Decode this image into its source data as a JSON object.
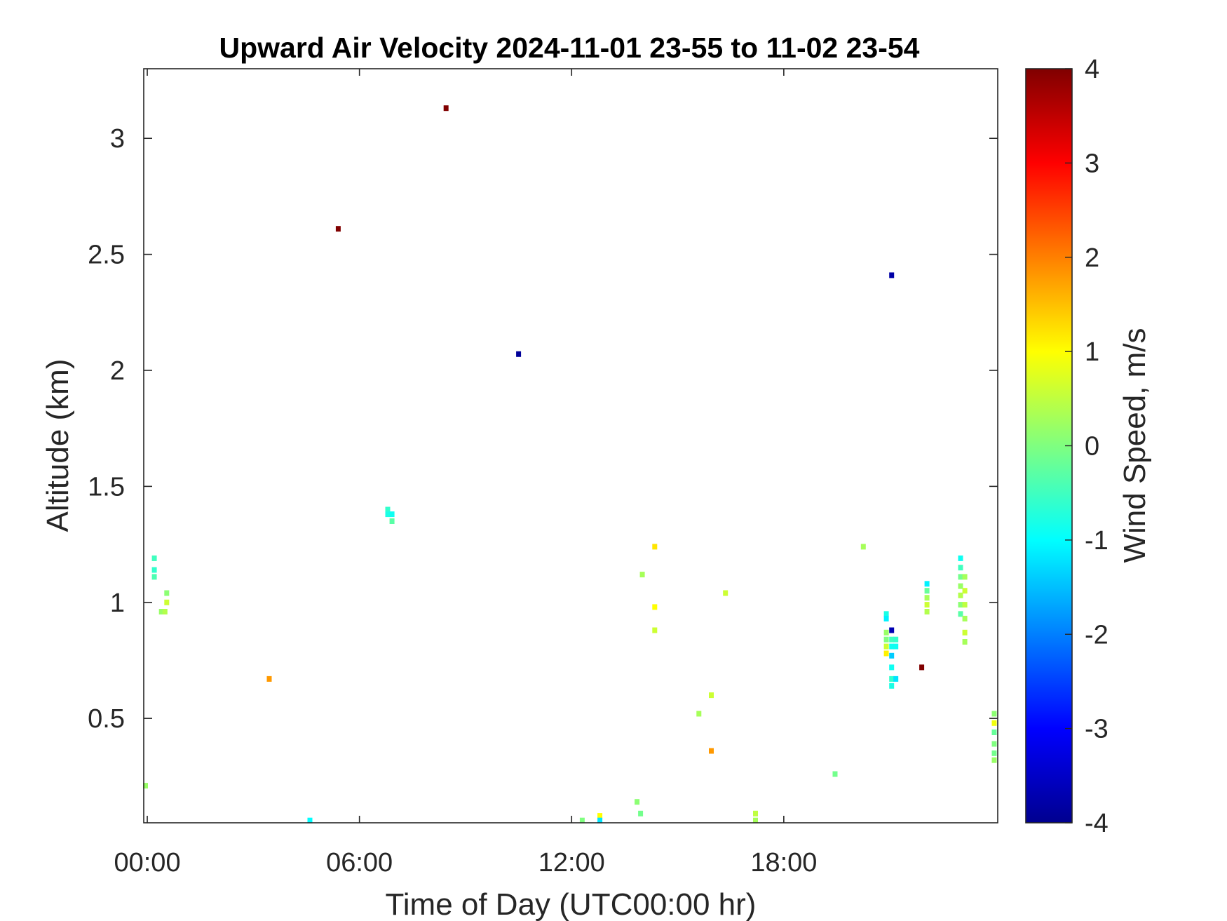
{
  "chart_data": {
    "type": "heatmap",
    "title": "Upward Air Velocity 2024-11-01 23-55 to 11-02 23-54",
    "xlabel": "Time of Day (UTC00:00 hr)",
    "ylabel": "Altitude (km)",
    "colorbar_label": "Wind Speed, m/s",
    "colormap": "jet",
    "x_unit": "hours",
    "xlim": [
      -0.1,
      24.05
    ],
    "ylim": [
      0.05,
      3.3
    ],
    "clim": [
      -4,
      4
    ],
    "x_ticks": [
      0,
      6,
      12,
      18
    ],
    "x_tick_labels": [
      "00:00",
      "06:00",
      "12:00",
      "18:00"
    ],
    "y_ticks": [
      0.5,
      1,
      1.5,
      2,
      2.5,
      3
    ],
    "y_tick_labels": [
      "0.5",
      "1",
      "1.5",
      "2",
      "2.5",
      "3"
    ],
    "colorbar_ticks": [
      -4,
      -3,
      -2,
      -1,
      0,
      1,
      2,
      3,
      4
    ],
    "colorbar_tick_labels": [
      "-4",
      "-3",
      "-2",
      "-1",
      "0",
      "1",
      "2",
      "3",
      "4"
    ],
    "grid": false,
    "points": [
      {
        "t": 8.45,
        "alt": 3.13,
        "w": 4.0
      },
      {
        "t": 5.4,
        "alt": 2.61,
        "w": 4.0
      },
      {
        "t": 10.5,
        "alt": 2.07,
        "w": -3.8
      },
      {
        "t": 21.05,
        "alt": 2.41,
        "w": -3.7
      },
      {
        "t": 21.9,
        "alt": 0.72,
        "w": 4.0
      },
      {
        "t": 3.45,
        "alt": 0.67,
        "w": 1.8
      },
      {
        "t": 15.95,
        "alt": 0.36,
        "w": 1.8
      },
      {
        "t": 14.35,
        "alt": 1.24,
        "w": 1.2
      },
      {
        "t": 14.35,
        "alt": 0.98,
        "w": 1.0
      },
      {
        "t": 14.35,
        "alt": 0.88,
        "w": 0.6
      },
      {
        "t": 14.0,
        "alt": 1.12,
        "w": 0.3
      },
      {
        "t": 16.35,
        "alt": 1.04,
        "w": 0.6
      },
      {
        "t": 15.95,
        "alt": 0.6,
        "w": 0.6
      },
      {
        "t": 15.6,
        "alt": 0.52,
        "w": 0.3
      },
      {
        "t": 19.45,
        "alt": 0.26,
        "w": -0.1
      },
      {
        "t": 20.25,
        "alt": 1.24,
        "w": 0.3
      },
      {
        "t": 17.2,
        "alt": 0.09,
        "w": 0.5
      },
      {
        "t": 17.2,
        "alt": 0.06,
        "w": 0.3
      },
      {
        "t": 13.85,
        "alt": 0.14,
        "w": 0.1
      },
      {
        "t": 13.95,
        "alt": 0.09,
        "w": -0.1
      },
      {
        "t": 12.8,
        "alt": 0.08,
        "w": 1.0
      },
      {
        "t": 12.8,
        "alt": 0.06,
        "w": -1.2
      },
      {
        "t": 12.3,
        "alt": 0.06,
        "w": 0.0
      },
      {
        "t": 4.6,
        "alt": 0.06,
        "w": -1.0
      },
      {
        "t": -0.05,
        "alt": 0.21,
        "w": 0.2
      },
      {
        "t": 0.2,
        "alt": 1.19,
        "w": -0.5
      },
      {
        "t": 0.2,
        "alt": 1.14,
        "w": -0.6
      },
      {
        "t": 0.2,
        "alt": 1.11,
        "w": -0.4
      },
      {
        "t": 0.4,
        "alt": 0.96,
        "w": 0.2
      },
      {
        "t": 0.5,
        "alt": 0.96,
        "w": 0.4
      },
      {
        "t": 0.55,
        "alt": 1.04,
        "w": 0.1
      },
      {
        "t": 0.55,
        "alt": 1.0,
        "w": 0.6
      },
      {
        "t": 6.8,
        "alt": 1.4,
        "w": -0.6
      },
      {
        "t": 6.8,
        "alt": 1.38,
        "w": -0.8
      },
      {
        "t": 6.92,
        "alt": 1.38,
        "w": -0.9
      },
      {
        "t": 6.92,
        "alt": 1.35,
        "w": -0.3
      },
      {
        "t": 20.9,
        "alt": 0.95,
        "w": -0.8
      },
      {
        "t": 20.9,
        "alt": 0.93,
        "w": -1.1
      },
      {
        "t": 20.9,
        "alt": 0.87,
        "w": 0.2
      },
      {
        "t": 20.9,
        "alt": 0.84,
        "w": 0.0
      },
      {
        "t": 20.9,
        "alt": 0.81,
        "w": 0.6
      },
      {
        "t": 20.9,
        "alt": 0.78,
        "w": 1.1
      },
      {
        "t": 21.05,
        "alt": 0.88,
        "w": -3.6
      },
      {
        "t": 21.05,
        "alt": 0.84,
        "w": -0.5
      },
      {
        "t": 21.05,
        "alt": 0.81,
        "w": -0.9
      },
      {
        "t": 21.05,
        "alt": 0.77,
        "w": -1.4
      },
      {
        "t": 21.05,
        "alt": 0.72,
        "w": -0.9
      },
      {
        "t": 21.05,
        "alt": 0.67,
        "w": -0.6
      },
      {
        "t": 21.05,
        "alt": 0.64,
        "w": -0.8
      },
      {
        "t": 21.17,
        "alt": 0.84,
        "w": -0.6
      },
      {
        "t": 21.17,
        "alt": 0.81,
        "w": -0.9
      },
      {
        "t": 21.17,
        "alt": 0.67,
        "w": -1.2
      },
      {
        "t": 22.05,
        "alt": 1.08,
        "w": -1.1
      },
      {
        "t": 22.05,
        "alt": 1.05,
        "w": -0.2
      },
      {
        "t": 22.05,
        "alt": 1.02,
        "w": 0.3
      },
      {
        "t": 22.05,
        "alt": 0.99,
        "w": 0.6
      },
      {
        "t": 22.05,
        "alt": 0.96,
        "w": 0.4
      },
      {
        "t": 23.0,
        "alt": 1.19,
        "w": -0.9
      },
      {
        "t": 23.0,
        "alt": 1.15,
        "w": -0.5
      },
      {
        "t": 23.0,
        "alt": 1.11,
        "w": -0.1
      },
      {
        "t": 23.0,
        "alt": 1.07,
        "w": 0.2
      },
      {
        "t": 23.0,
        "alt": 1.03,
        "w": 0.4
      },
      {
        "t": 23.0,
        "alt": 0.99,
        "w": 0.1
      },
      {
        "t": 23.0,
        "alt": 0.95,
        "w": -0.3
      },
      {
        "t": 23.12,
        "alt": 1.11,
        "w": 0.3
      },
      {
        "t": 23.12,
        "alt": 1.05,
        "w": 0.6
      },
      {
        "t": 23.12,
        "alt": 0.99,
        "w": 0.5
      },
      {
        "t": 23.12,
        "alt": 0.93,
        "w": 0.3
      },
      {
        "t": 23.12,
        "alt": 0.87,
        "w": 0.6
      },
      {
        "t": 23.12,
        "alt": 0.83,
        "w": 0.3
      },
      {
        "t": 23.95,
        "alt": 0.52,
        "w": 0.1
      },
      {
        "t": 23.95,
        "alt": 0.48,
        "w": 0.9
      },
      {
        "t": 23.95,
        "alt": 0.44,
        "w": -0.2
      },
      {
        "t": 23.95,
        "alt": 0.39,
        "w": 0.0
      },
      {
        "t": 23.95,
        "alt": 0.35,
        "w": -0.1
      },
      {
        "t": 23.95,
        "alt": 0.32,
        "w": 0.2
      }
    ]
  }
}
